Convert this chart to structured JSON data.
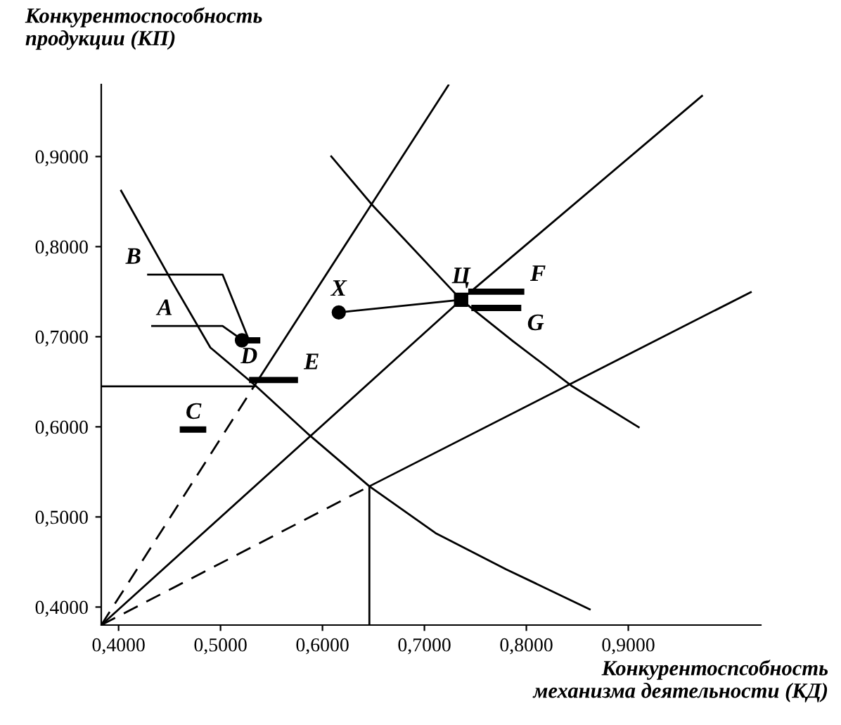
{
  "chart_data": {
    "type": "line",
    "xlabel": "Конкурентоспсобность\nмеханизма деятельности (КД)",
    "ylabel": "Конкурентоспособность\nпродукции (КП)",
    "xlim": [
      0.383,
      1.03
    ],
    "ylim": [
      0.38,
      0.98
    ],
    "xticks": [
      {
        "value": 0.4,
        "label": "0,4000"
      },
      {
        "value": 0.5,
        "label": "0,5000"
      },
      {
        "value": 0.6,
        "label": "0,6000"
      },
      {
        "value": 0.7,
        "label": "0,7000"
      },
      {
        "value": 0.8,
        "label": "0,8000"
      },
      {
        "value": 0.9,
        "label": "0,9000"
      }
    ],
    "yticks": [
      {
        "value": 0.4,
        "label": "0,4000"
      },
      {
        "value": 0.5,
        "label": "0,5000"
      },
      {
        "value": 0.6,
        "label": "0,6000"
      },
      {
        "value": 0.7,
        "label": "0,7000"
      },
      {
        "value": 0.8,
        "label": "0,8000"
      },
      {
        "value": 0.9,
        "label": "0,9000"
      }
    ],
    "grid": false,
    "legend": false,
    "series": [
      {
        "color": "#000000",
        "line_style": "dashed",
        "x": [
          0.383,
          0.534
        ],
        "values": [
          0.38,
          0.647
        ]
      },
      {
        "color": "#000000",
        "line_style": "solid",
        "x": [
          0.534,
          0.724
        ],
        "values": [
          0.647,
          0.98
        ]
      },
      {
        "color": "#000000",
        "line_style": "solid",
        "x": [
          0.383,
          0.736,
          0.973
        ],
        "values": [
          0.38,
          0.741,
          0.968
        ]
      },
      {
        "color": "#000000",
        "line_style": "dashed",
        "x": [
          0.383,
          0.646
        ],
        "values": [
          0.38,
          0.534
        ]
      },
      {
        "color": "#000000",
        "line_style": "solid",
        "x": [
          0.646,
          1.021
        ],
        "values": [
          0.534,
          0.75
        ]
      },
      {
        "color": "#000000",
        "line_style": "solid",
        "x": [
          0.646,
          0.646
        ],
        "values": [
          0.38,
          0.534
        ]
      },
      {
        "color": "#000000",
        "line_style": "solid",
        "x": [
          0.383,
          0.534
        ],
        "values": [
          0.645,
          0.645
        ]
      },
      {
        "color": "#000000",
        "line_style": "solid",
        "x": [
          0.402,
          0.453,
          0.49,
          0.534,
          0.587,
          0.646,
          0.711,
          0.78,
          0.863
        ],
        "values": [
          0.863,
          0.76,
          0.688,
          0.646,
          0.591,
          0.534,
          0.482,
          0.442,
          0.397
        ]
      },
      {
        "color": "#000000",
        "line_style": "solid",
        "x": [
          0.608,
          0.649,
          0.736,
          0.787,
          0.845,
          0.911
        ],
        "values": [
          0.901,
          0.846,
          0.741,
          0.695,
          0.645,
          0.599
        ]
      },
      {
        "color": "#000000",
        "line_style": "solid",
        "x": [
          0.432,
          0.502,
          0.522
        ],
        "values": [
          0.712,
          0.712,
          0.696
        ]
      },
      {
        "color": "#000000",
        "line_style": "solid",
        "x": [
          0.428,
          0.502,
          0.528
        ],
        "values": [
          0.769,
          0.769,
          0.696
        ]
      },
      {
        "color": "#000000",
        "line_style": "solid",
        "x": [
          0.616,
          0.736
        ],
        "values": [
          0.727,
          0.741
        ]
      },
      {
        "color": "#000000",
        "line_style": "solid",
        "x": [
          0.521,
          0.539
        ],
        "values": [
          0.696,
          0.696
        ]
      },
      {
        "color": "#000000",
        "line_style": "solid",
        "x": [
          0.528,
          0.576
        ],
        "values": [
          0.652,
          0.652
        ]
      },
      {
        "color": "#000000",
        "line_style": "solid",
        "x": [
          0.46,
          0.486
        ],
        "values": [
          0.597,
          0.597
        ]
      },
      {
        "color": "#000000",
        "line_style": "solid",
        "x": [
          0.743,
          0.798
        ],
        "values": [
          0.75,
          0.75
        ]
      },
      {
        "color": "#000000",
        "line_style": "solid",
        "x": [
          0.746,
          0.795
        ],
        "values": [
          0.732,
          0.732
        ]
      },
      {
        "type": "scatter",
        "marker": "circle",
        "color": "#000000",
        "x": [
          0.521,
          0.616
        ],
        "values": [
          0.696,
          0.727
        ]
      },
      {
        "type": "scatter",
        "marker": "square",
        "color": "#000000",
        "x": [
          0.736
        ],
        "values": [
          0.741
        ]
      }
    ],
    "annotations": [
      {
        "text": "B",
        "x": 0.428,
        "y": 0.769
      },
      {
        "text": "A",
        "x": 0.432,
        "y": 0.712
      },
      {
        "text": "D",
        "x": 0.528,
        "y": 0.652
      },
      {
        "text": "E",
        "x": 0.576,
        "y": 0.652
      },
      {
        "text": "C",
        "x": 0.46,
        "y": 0.597
      },
      {
        "text": "X",
        "x": 0.616,
        "y": 0.727
      },
      {
        "text": "Ц",
        "x": 0.736,
        "y": 0.741
      },
      {
        "text": "F",
        "x": 0.798,
        "y": 0.75
      },
      {
        "text": "G",
        "x": 0.795,
        "y": 0.732
      }
    ]
  }
}
